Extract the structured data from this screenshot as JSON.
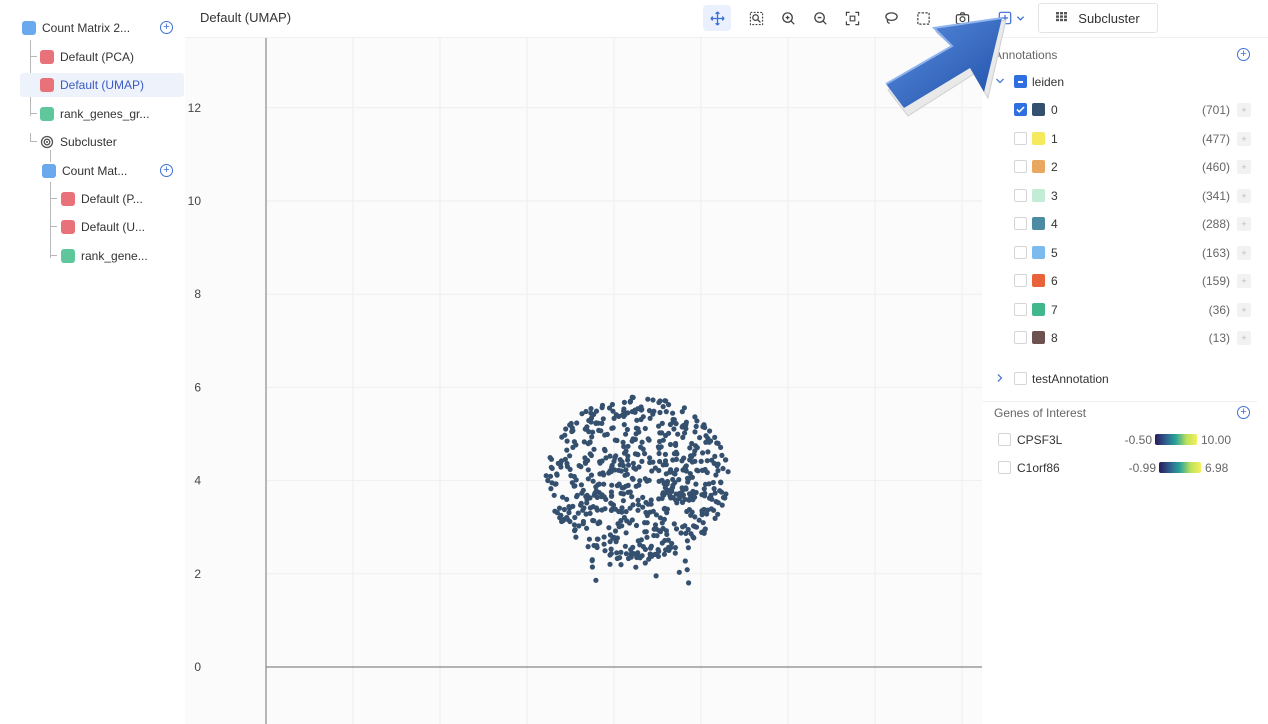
{
  "sidebar": {
    "items": [
      {
        "label": "Count Matrix 2...",
        "icon": "matrix-icon"
      },
      {
        "label": "Default (PCA)",
        "icon": "plot-icon"
      },
      {
        "label": "Default (UMAP)",
        "icon": "plot-icon"
      },
      {
        "label": "rank_genes_gr...",
        "icon": "rank-genes-icon"
      },
      {
        "label": "Subcluster",
        "icon": "subcluster-icon"
      },
      {
        "label": "Count Mat...",
        "icon": "matrix-icon"
      },
      {
        "label": "Default (P...",
        "icon": "plot-icon"
      },
      {
        "label": "Default (U...",
        "icon": "plot-icon"
      },
      {
        "label": "rank_gene...",
        "icon": "rank-genes-icon"
      }
    ]
  },
  "header": {
    "title": "Default (UMAP)",
    "subcluster_label": "Subcluster",
    "tools": [
      "pan-icon",
      "zoom-box-icon",
      "zoom-in-icon",
      "zoom-out-icon",
      "autoscale-icon",
      "lasso-icon",
      "box-select-icon",
      "camera-icon",
      "add-annotation-icon"
    ]
  },
  "plot": {
    "y_ticks": [
      "12",
      "10",
      "8",
      "6",
      "4",
      "2",
      "0"
    ],
    "point_color": "#35506e"
  },
  "annotations": {
    "title": "Annotations",
    "group_name": "leiden",
    "clusters": [
      {
        "label": "0",
        "count": "(701)",
        "color": "#35506e",
        "checked": true
      },
      {
        "label": "1",
        "count": "(477)",
        "color": "#f5ea5e",
        "checked": false
      },
      {
        "label": "2",
        "count": "(460)",
        "color": "#e9a860",
        "checked": false
      },
      {
        "label": "3",
        "count": "(341)",
        "color": "#c2ecd6",
        "checked": false
      },
      {
        "label": "4",
        "count": "(288)",
        "color": "#4c8ba2",
        "checked": false
      },
      {
        "label": "5",
        "count": "(163)",
        "color": "#7bbbed",
        "checked": false
      },
      {
        "label": "6",
        "count": "(159)",
        "color": "#e8623a",
        "checked": false
      },
      {
        "label": "7",
        "count": "(36)",
        "color": "#40b88c",
        "checked": false
      },
      {
        "label": "8",
        "count": "(13)",
        "color": "#6e5250",
        "checked": false
      }
    ],
    "other_group": "testAnnotation"
  },
  "genes": {
    "title": "Genes of Interest",
    "items": [
      {
        "name": "CPSF3L",
        "min": "-0.50",
        "max": "10.00"
      },
      {
        "name": "C1orf86",
        "min": "-0.99",
        "max": "6.98"
      }
    ]
  }
}
